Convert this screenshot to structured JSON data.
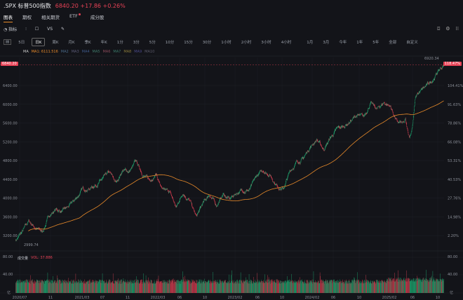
{
  "header": {
    "symbol": ".SPX 标普500指数",
    "price": "6840.20",
    "change": "+17.86",
    "change_pct": "+0.26%"
  },
  "tabs": [
    {
      "label": "图表",
      "active": true
    },
    {
      "label": "期权"
    },
    {
      "label": "相关期货"
    },
    {
      "label": "ETF",
      "dot": true
    },
    {
      "label": "成分股"
    }
  ],
  "toolbar": {
    "indicator": "指标",
    "vs": "VS"
  },
  "periods": [
    "5日",
    "日K",
    "周K",
    "月K",
    "季K",
    "年K",
    "1分",
    "3分",
    "5分",
    "10分",
    "15分",
    "30分",
    "1小时",
    "2小时",
    "3小时",
    "4小时",
    "1月",
    "3月",
    "今年",
    "1年",
    "5年",
    "全部",
    "自定义"
  ],
  "selected_period": "日K",
  "ma_legend": {
    "label": "MA",
    "ma1": "MA1: 6111.516",
    "others": [
      "MA2",
      "MA3",
      "MA4",
      "MA5",
      "MA6",
      "MA7",
      "MA8",
      "MA9",
      "MA10"
    ]
  },
  "price_tag": "6840.20",
  "pct_tag": "118.47%",
  "high_label": "6920.34",
  "low_label": "2999.74",
  "volume": {
    "label": "成交量",
    "vol": "VOL: 37.886",
    "unit": "亿",
    "ticks": [
      "80.00",
      "40.00"
    ]
  },
  "colors": {
    "up": "#1fb87a",
    "down": "#e84256",
    "ma1": "#e88a2a",
    "bg": "#131419"
  },
  "chart_data": {
    "type": "candlestick",
    "y_ticks": [
      "6400.00",
      "6000.00",
      "5600.00",
      "5200.00",
      "4800.00",
      "4400.00",
      "4000.00",
      "3600.00",
      "3200.00"
    ],
    "y_pct_ticks": [
      "104.41%",
      "91.63%",
      "78.86%",
      "66.08%",
      "53.31%",
      "40.53%",
      "27.76%",
      "14.98%",
      "2.20%"
    ],
    "x_ticks": [
      "2020/07",
      "11",
      "2021/03",
      "07",
      "11",
      "2022/03",
      "06",
      "10",
      "2023/02",
      "06",
      "10",
      "2024/02",
      "06",
      "10",
      "2025/02",
      "06",
      "10"
    ],
    "ylim": [
      2950,
      7000
    ],
    "monthly_close": [
      3100,
      3271,
      3500,
      3363,
      3270,
      3621,
      3756,
      3714,
      3811,
      3973,
      4181,
      4204,
      4297,
      4395,
      4523,
      4307,
      4605,
      4567,
      4766,
      4516,
      4374,
      4530,
      4132,
      4132,
      3785,
      4130,
      3955,
      3586,
      3872,
      4080,
      3840,
      4077,
      3970,
      4109,
      4169,
      4180,
      4450,
      4589,
      4508,
      4288,
      4194,
      4568,
      4770,
      4846,
      5096,
      5254,
      5036,
      5278,
      5460,
      5522,
      5648,
      5762,
      5705,
      6032,
      5882,
      6041,
      5955,
      5612,
      5569,
      5912,
      6205,
      6339,
      6460,
      6688,
      6840
    ]
  }
}
